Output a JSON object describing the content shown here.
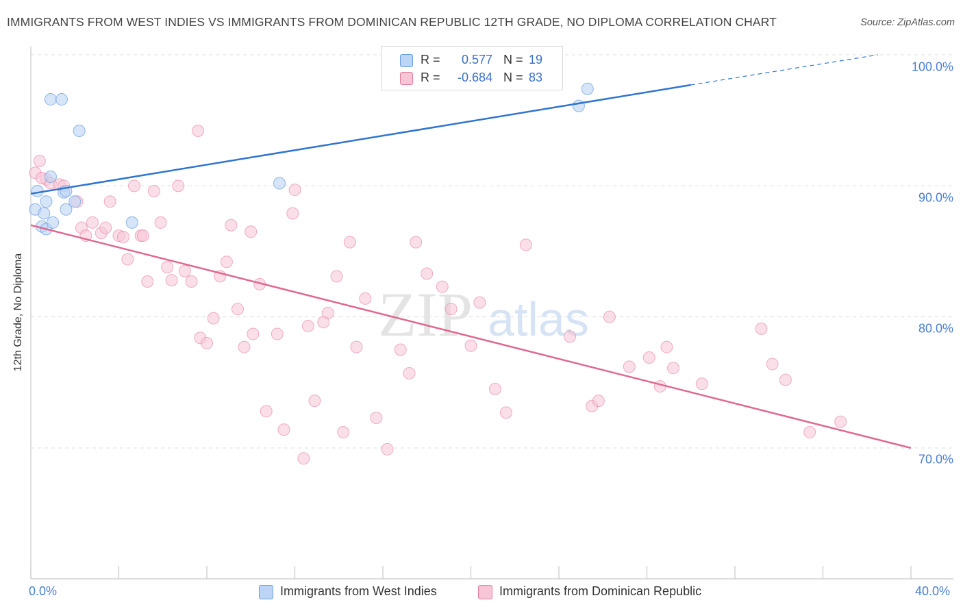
{
  "header": {
    "title": "IMMIGRANTS FROM WEST INDIES VS IMMIGRANTS FROM DOMINICAN REPUBLIC 12TH GRADE, NO DIPLOMA CORRELATION CHART",
    "source": "Source: ZipAtlas.com"
  },
  "watermark": {
    "zip": "ZIP",
    "atlas": "atlas"
  },
  "legend": {
    "rows": [
      {
        "r_label": "R =",
        "r_value": "0.577",
        "n_label": "N =",
        "n_value": "19",
        "color": "#a9c8f2"
      },
      {
        "r_label": "R =",
        "r_value": "-0.684",
        "n_label": "N =",
        "n_value": "83",
        "color": "#f7b9cc"
      }
    ]
  },
  "chart_data": {
    "type": "scatter",
    "title": "IMMIGRANTS FROM WEST INDIES VS IMMIGRANTS FROM DOMINICAN REPUBLIC 12TH GRADE, NO DIPLOMA CORRELATION CHART",
    "xlabel": "",
    "ylabel": "12th Grade, No Diploma",
    "xlim": [
      0,
      40
    ],
    "ylim": [
      60,
      102
    ],
    "x_tick_labels": [
      "0.0%",
      "40.0%"
    ],
    "y_ticks": [
      70,
      80,
      90,
      100
    ],
    "y_tick_labels": [
      "70.0%",
      "80.0%",
      "90.0%",
      "100.0%"
    ],
    "grid": true,
    "legend_position": "top-center",
    "series": [
      {
        "name": "Immigrants from West Indies",
        "color": "#6b9fe0",
        "fill": "#bcd4f5",
        "trend": {
          "x": [
            0,
            30
          ],
          "y": [
            89.4,
            97.7
          ],
          "extended_to": [
            38.5,
            100.0
          ]
        },
        "points": [
          [
            0.2,
            88.2
          ],
          [
            0.3,
            89.6
          ],
          [
            0.5,
            86.9
          ],
          [
            0.6,
            87.9
          ],
          [
            0.7,
            88.8
          ],
          [
            0.7,
            86.7
          ],
          [
            0.9,
            90.7
          ],
          [
            1.0,
            87.2
          ],
          [
            0.9,
            96.6
          ],
          [
            1.4,
            96.6
          ],
          [
            1.5,
            89.5
          ],
          [
            1.6,
            88.2
          ],
          [
            2.0,
            88.8
          ],
          [
            2.2,
            94.2
          ],
          [
            4.6,
            87.2
          ],
          [
            11.3,
            90.2
          ],
          [
            24.9,
            96.1
          ],
          [
            25.3,
            97.4
          ],
          [
            1.6,
            89.6
          ]
        ]
      },
      {
        "name": "Immigrants from Dominican Republic",
        "color": "#e57ba0",
        "fill": "#f7c5d5",
        "trend": {
          "x": [
            0,
            40
          ],
          "y": [
            87.0,
            70.0
          ]
        },
        "points": [
          [
            0.2,
            91.0
          ],
          [
            0.4,
            91.9
          ],
          [
            0.7,
            90.5
          ],
          [
            0.9,
            90.2
          ],
          [
            1.3,
            90.1
          ],
          [
            1.5,
            90.0
          ],
          [
            2.1,
            88.8
          ],
          [
            2.3,
            86.8
          ],
          [
            2.5,
            86.2
          ],
          [
            2.8,
            87.2
          ],
          [
            3.2,
            86.4
          ],
          [
            3.4,
            86.8
          ],
          [
            3.6,
            88.8
          ],
          [
            4.0,
            86.2
          ],
          [
            4.2,
            86.1
          ],
          [
            4.4,
            84.4
          ],
          [
            4.7,
            90.0
          ],
          [
            5.0,
            86.2
          ],
          [
            5.1,
            86.2
          ],
          [
            5.3,
            82.7
          ],
          [
            5.6,
            89.6
          ],
          [
            5.9,
            87.2
          ],
          [
            6.2,
            83.8
          ],
          [
            6.4,
            82.8
          ],
          [
            6.7,
            90.0
          ],
          [
            7.0,
            83.5
          ],
          [
            7.3,
            82.7
          ],
          [
            7.6,
            94.2
          ],
          [
            7.7,
            78.4
          ],
          [
            8.0,
            78.0
          ],
          [
            8.3,
            79.9
          ],
          [
            8.6,
            83.1
          ],
          [
            8.9,
            84.2
          ],
          [
            9.1,
            87.0
          ],
          [
            9.4,
            80.6
          ],
          [
            9.7,
            77.7
          ],
          [
            10.0,
            86.5
          ],
          [
            10.1,
            78.7
          ],
          [
            10.4,
            82.5
          ],
          [
            10.7,
            72.8
          ],
          [
            11.2,
            78.7
          ],
          [
            11.5,
            71.4
          ],
          [
            11.9,
            87.9
          ],
          [
            12.0,
            89.7
          ],
          [
            12.4,
            69.2
          ],
          [
            12.6,
            79.3
          ],
          [
            12.9,
            73.6
          ],
          [
            13.3,
            79.6
          ],
          [
            13.5,
            80.3
          ],
          [
            13.9,
            83.1
          ],
          [
            14.2,
            71.2
          ],
          [
            14.5,
            85.7
          ],
          [
            14.8,
            77.7
          ],
          [
            15.2,
            81.4
          ],
          [
            15.7,
            72.3
          ],
          [
            16.2,
            69.9
          ],
          [
            16.8,
            77.5
          ],
          [
            17.2,
            75.7
          ],
          [
            17.5,
            85.7
          ],
          [
            18.0,
            83.3
          ],
          [
            18.7,
            82.3
          ],
          [
            19.1,
            80.6
          ],
          [
            20.0,
            77.8
          ],
          [
            20.4,
            81.1
          ],
          [
            21.1,
            74.5
          ],
          [
            21.6,
            72.7
          ],
          [
            22.5,
            85.5
          ],
          [
            24.5,
            78.5
          ],
          [
            25.5,
            73.2
          ],
          [
            25.8,
            73.6
          ],
          [
            26.3,
            80.0
          ],
          [
            27.2,
            76.2
          ],
          [
            28.1,
            76.9
          ],
          [
            28.6,
            74.7
          ],
          [
            28.9,
            77.7
          ],
          [
            29.2,
            76.1
          ],
          [
            30.5,
            74.9
          ],
          [
            33.2,
            79.1
          ],
          [
            33.7,
            76.4
          ],
          [
            34.3,
            75.2
          ],
          [
            35.4,
            71.2
          ],
          [
            36.8,
            72.0
          ],
          [
            0.5,
            90.6
          ]
        ]
      }
    ]
  },
  "bottom_legend": {
    "items": [
      {
        "label": "Immigrants from West Indies",
        "color": "#bcd4f5",
        "border": "#6b9fe0"
      },
      {
        "label": "Immigrants from Dominican Republic",
        "color": "#f7c5d5",
        "border": "#e57ba0"
      }
    ]
  }
}
